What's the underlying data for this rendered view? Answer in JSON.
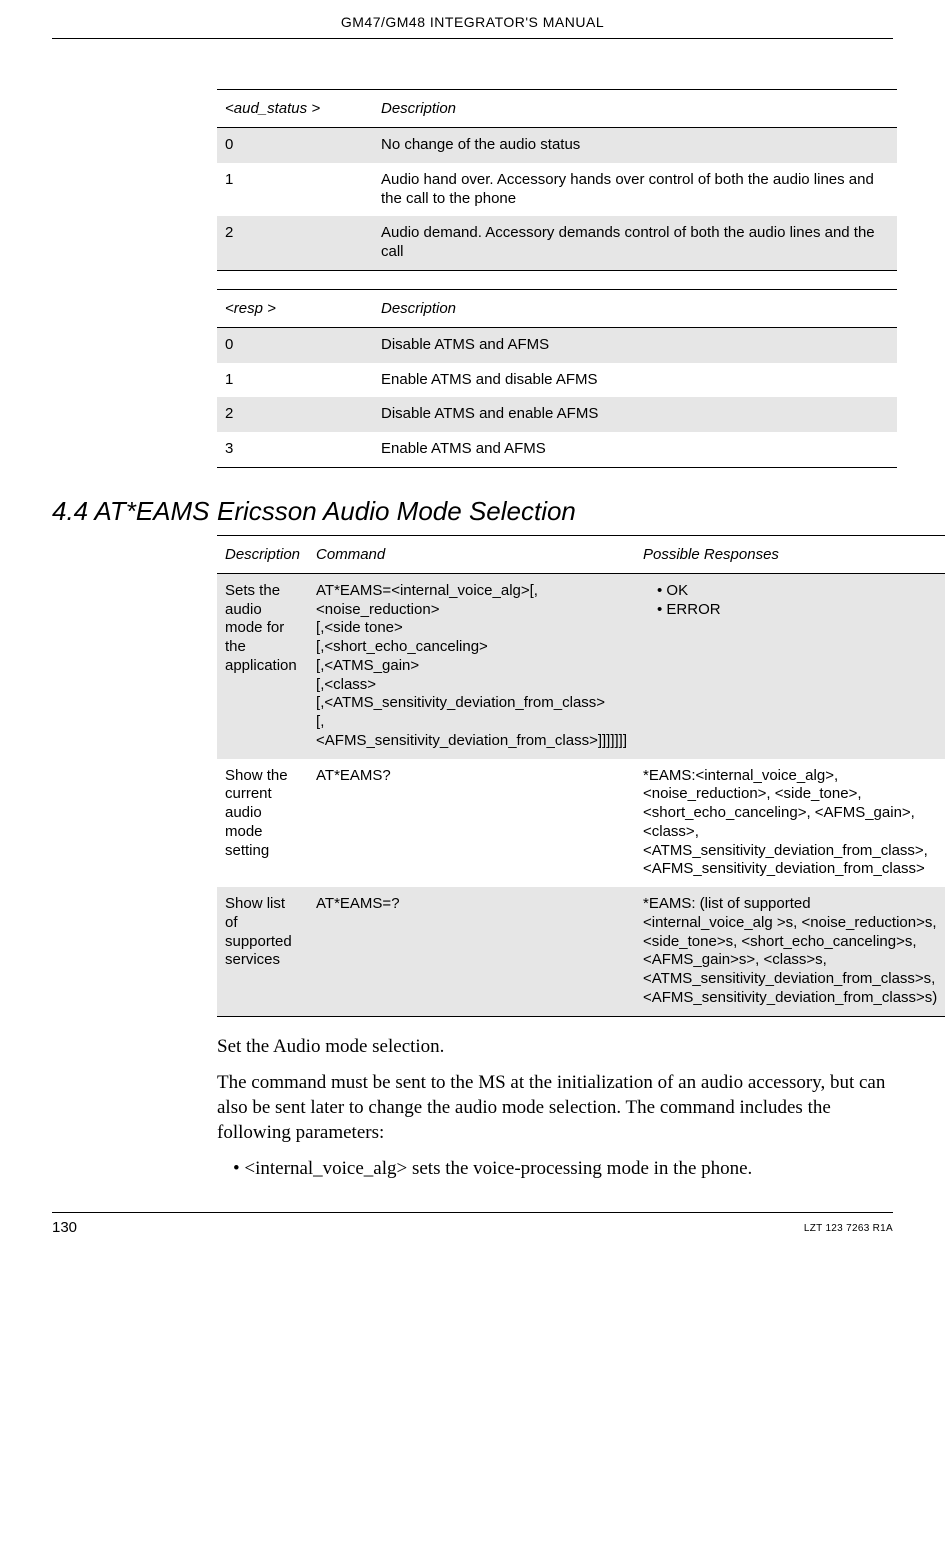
{
  "header": {
    "title": "GM47/GM48 INTEGRATOR'S MANUAL"
  },
  "table1": {
    "headers": [
      "<aud_status >",
      "Description"
    ],
    "rows": [
      {
        "c0": "0",
        "c1": "No change of the audio status",
        "shaded": true
      },
      {
        "c0": "1",
        "c1": "Audio hand over. Accessory hands over control of both the audio lines and the call to the phone",
        "shaded": false
      },
      {
        "c0": "2",
        "c1": "Audio demand. Accessory demands control of both the audio lines and the call",
        "shaded": true
      }
    ]
  },
  "table2": {
    "headers": [
      "<resp >",
      "Description"
    ],
    "rows": [
      {
        "c0": "0",
        "c1": "Disable ATMS and AFMS",
        "shaded": true
      },
      {
        "c0": "1",
        "c1": "Enable ATMS and disable AFMS",
        "shaded": false
      },
      {
        "c0": "2",
        "c1": "Disable ATMS and enable AFMS",
        "shaded": true
      },
      {
        "c0": "3",
        "c1": "Enable ATMS and AFMS",
        "shaded": false
      }
    ]
  },
  "section": {
    "num": "4.4 AT*EAMS",
    "title": "Ericsson Audio Mode Selection"
  },
  "table3": {
    "headers": [
      "Description",
      "Command",
      "Possible Responses"
    ],
    "rows": [
      {
        "shaded": true,
        "desc": "Sets the audio mode for the application",
        "cmd": "AT*EAMS=<internal_voice_alg>[,<noise_reduction>\n[,<side tone>\n[,<short_echo_canceling>\n[,<ATMS_gain>\n[,<class>\n[,<ATMS_sensitivity_deviation_from_class>\n[,<AFMS_sensitivity_deviation_from_class>]]]]]]]",
        "resp_list": [
          "OK",
          "ERROR"
        ]
      },
      {
        "shaded": false,
        "desc": "Show the current audio mode setting",
        "cmd": "AT*EAMS?",
        "resp": "*EAMS:<internal_voice_alg>, <noise_reduction>, <side_tone>, <short_echo_canceling>, <AFMS_gain>,<class>,<ATMS_sensitivity_deviation_from_class>,<AFMS_sensitivity_deviation_from_class>"
      },
      {
        "shaded": true,
        "desc": "Show list of supported services",
        "cmd": "AT*EAMS=?",
        "resp": "*EAMS: (list of supported <internal_voice_alg >s, <noise_reduction>s, <side_tone>s, <short_echo_canceling>s, <AFMS_gain>s>, <class>s, <ATMS_sensitivity_deviation_from_class>s, <AFMS_sensitivity_deviation_from_class>s)"
      }
    ]
  },
  "body": {
    "p1": "Set the Audio mode selection.",
    "p2": "The command must be sent to the MS at the initialization of an audio accessory, but can also be sent later to change the audio mode selection. The command includes the following parameters:",
    "bullet1": "<internal_voice_alg> sets the voice-processing mode in the phone."
  },
  "footer": {
    "page": "130",
    "docid": "LZT 123 7263 R1A"
  },
  "style": {
    "shaded_bg": "#e6e6e6",
    "rule_color": "#000000",
    "body_font": "Times New Roman",
    "ui_font": "Arial"
  }
}
